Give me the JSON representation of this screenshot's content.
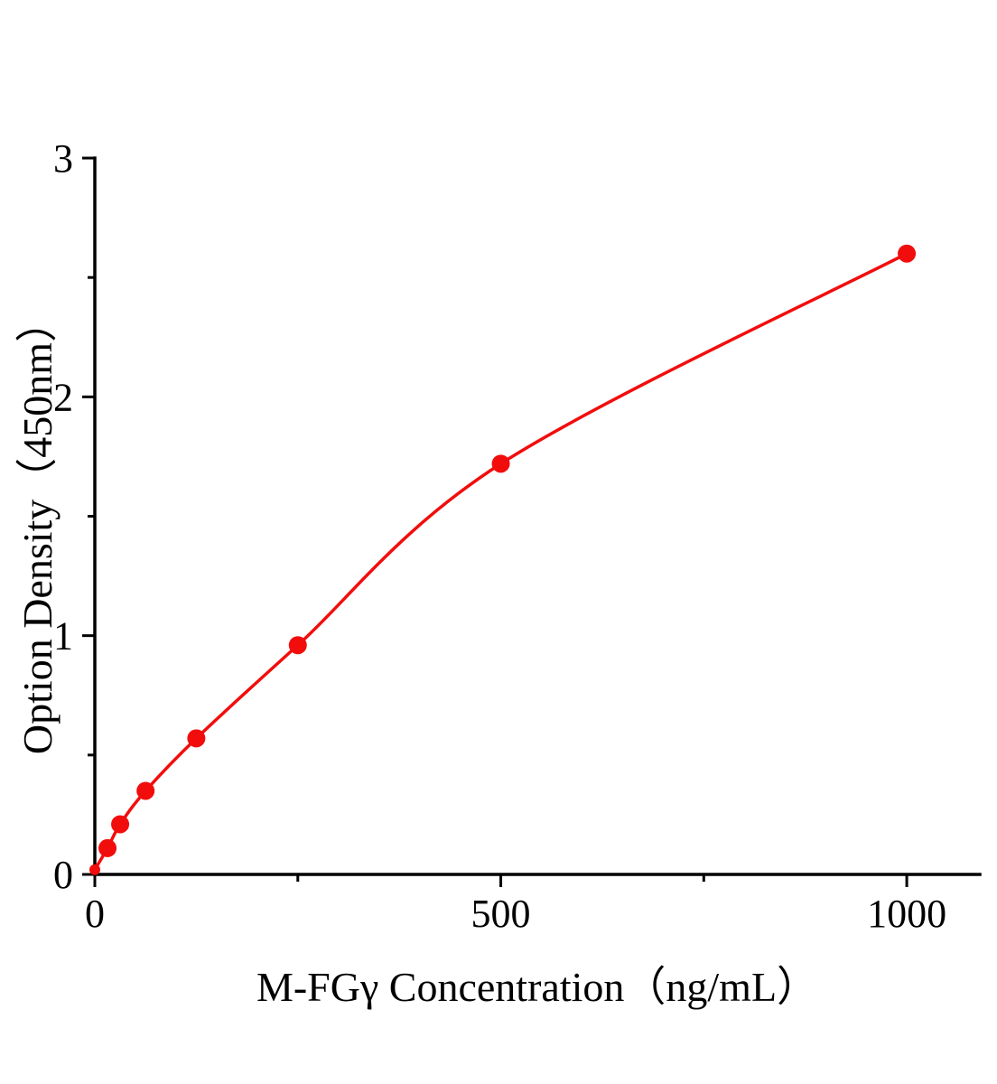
{
  "chart_data": {
    "type": "scatter",
    "subtype": "standard-curve-with-fitted-line",
    "xlabel": "M-FGγ Concentration（ng/mL）",
    "ylabel": "Option Density（450nm）",
    "x": [
      0,
      15.6,
      31.2,
      62.5,
      125,
      250,
      500,
      1000
    ],
    "y": [
      0.02,
      0.11,
      0.21,
      0.35,
      0.57,
      0.96,
      1.72,
      2.6
    ],
    "xlim": [
      0,
      1090
    ],
    "ylim": [
      0,
      3
    ],
    "x_major_ticks": [
      0,
      500,
      1000
    ],
    "x_minor_ticks": [
      250,
      750
    ],
    "y_major_ticks": [
      0,
      1,
      2,
      3
    ],
    "y_minor_ticks": [
      0.5,
      1.5,
      2.5
    ],
    "grid": false,
    "legend": "none",
    "marker": "filled-circle",
    "colors": {
      "curve": "#f20d0d",
      "marker": "#f20d0d",
      "axis": "#000000",
      "text": "#000000",
      "background": "#ffffff"
    }
  }
}
